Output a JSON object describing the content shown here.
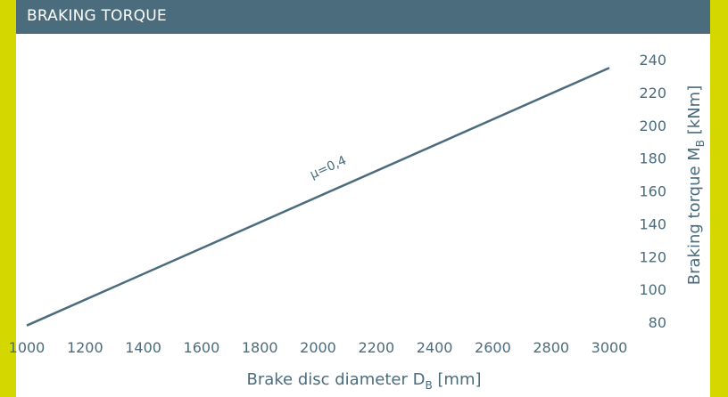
{
  "header": {
    "title": "BRAKING TORQUE"
  },
  "colors": {
    "background": "#d4d800",
    "header": "#4a6c7d",
    "line": "#4a6c7d",
    "text": "#4a6c7d"
  },
  "chart_data": {
    "type": "line",
    "title": "BRAKING TORQUE",
    "xlabel_main": "Brake disc diameter D",
    "xlabel_sub": "B",
    "xlabel_unit": " [mm]",
    "ylabel_main": "Braking torque M",
    "ylabel_sub": "B",
    "ylabel_unit": " [kNm]",
    "xlim": [
      1000,
      3000
    ],
    "ylim": [
      80,
      240
    ],
    "x_ticks": [
      1000,
      1200,
      1400,
      1600,
      1800,
      2000,
      2200,
      2400,
      2600,
      2800,
      3000
    ],
    "y_ticks": [
      240,
      220,
      200,
      180,
      160,
      140,
      120,
      100,
      80
    ],
    "grid": false,
    "series": [
      {
        "name": "μ=0,4",
        "x": [
          1000,
          3000
        ],
        "y": [
          78,
          235
        ]
      }
    ],
    "annotations": [
      {
        "text": "μ=0,4",
        "x": 2040,
        "y": 170
      }
    ]
  }
}
